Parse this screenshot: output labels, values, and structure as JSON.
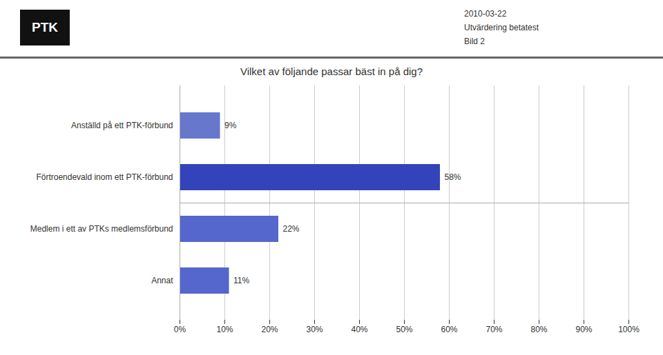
{
  "chart_data": {
    "type": "bar",
    "orientation": "horizontal",
    "title": "Vilket av följande passar bäst in på dig?",
    "annotations": [
      "PTK",
      "2010-03-22",
      "Utvärdering betatest",
      "Bild 2"
    ],
    "categories": [
      "Anställd på ett PTK-förbund",
      "Förtroendevald inom ett PTK-förbund",
      "Medlem i ett av PTKs medlemsförbund",
      "Annat"
    ],
    "values": [
      9,
      58,
      22,
      11
    ],
    "value_labels": [
      "9%",
      "58%",
      "22%",
      "11%"
    ],
    "data_labels": true,
    "colors": [
      "#6677cc",
      "#3344bb",
      "#5566cc",
      "#5566cc"
    ],
    "xlim": [
      0,
      100
    ],
    "xticks": [
      {
        "value": 0,
        "label": "0%"
      },
      {
        "value": 10,
        "label": "10%"
      },
      {
        "value": 20,
        "label": "20%"
      },
      {
        "value": 30,
        "label": "30%"
      },
      {
        "value": 40,
        "label": "40%"
      },
      {
        "value": 50,
        "label": "50%"
      },
      {
        "value": 60,
        "label": "60%"
      },
      {
        "value": 70,
        "label": "70%"
      },
      {
        "value": 80,
        "label": "80%"
      },
      {
        "value": 90,
        "label": "90%"
      },
      {
        "value": 100,
        "label": "100%"
      }
    ],
    "grid": true
  }
}
